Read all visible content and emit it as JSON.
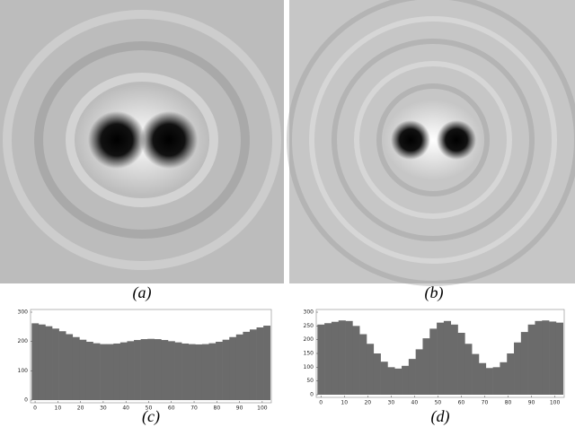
{
  "figure": {
    "panels": [
      "(a)",
      "(b)"
    ]
  },
  "chart_data": [
    {
      "type": "bar",
      "caption": "(c)",
      "color": "#6b6b6b",
      "x": [
        0,
        3,
        6,
        9,
        12,
        15,
        18,
        21,
        24,
        27,
        30,
        33,
        36,
        39,
        42,
        45,
        48,
        51,
        54,
        57,
        60,
        63,
        66,
        69,
        72,
        75,
        78,
        81,
        84,
        87,
        90,
        93,
        96,
        99,
        102
      ],
      "values": [
        262,
        258,
        252,
        244,
        235,
        225,
        215,
        206,
        199,
        194,
        191,
        191,
        193,
        197,
        201,
        205,
        208,
        209,
        208,
        205,
        201,
        197,
        193,
        191,
        190,
        191,
        194,
        199,
        206,
        215,
        224,
        233,
        241,
        248,
        254
      ],
      "xlim": [
        -2,
        104
      ],
      "ylim": [
        0,
        300
      ],
      "xticks": [
        0,
        10,
        20,
        30,
        40,
        50,
        60,
        70,
        80,
        90,
        100
      ],
      "yticks": [
        0,
        100,
        200,
        300
      ]
    },
    {
      "type": "bar",
      "caption": "(d)",
      "color": "#6b6b6b",
      "x": [
        0,
        3,
        6,
        9,
        12,
        15,
        18,
        21,
        24,
        27,
        30,
        33,
        36,
        39,
        42,
        45,
        48,
        51,
        54,
        57,
        60,
        63,
        66,
        69,
        72,
        75,
        78,
        81,
        84,
        87,
        90,
        93,
        96,
        99,
        102
      ],
      "values": [
        255,
        260,
        265,
        270,
        268,
        250,
        220,
        185,
        150,
        120,
        100,
        95,
        105,
        130,
        165,
        205,
        240,
        262,
        268,
        255,
        225,
        185,
        148,
        115,
        97,
        100,
        118,
        150,
        190,
        228,
        255,
        268,
        270,
        266,
        262
      ],
      "xlim": [
        -2,
        104
      ],
      "ylim": [
        0,
        300
      ],
      "xticks": [
        0,
        10,
        20,
        30,
        40,
        50,
        60,
        70,
        80,
        90,
        100
      ],
      "yticks": [
        0,
        50,
        100,
        150,
        200,
        250,
        300
      ]
    }
  ]
}
